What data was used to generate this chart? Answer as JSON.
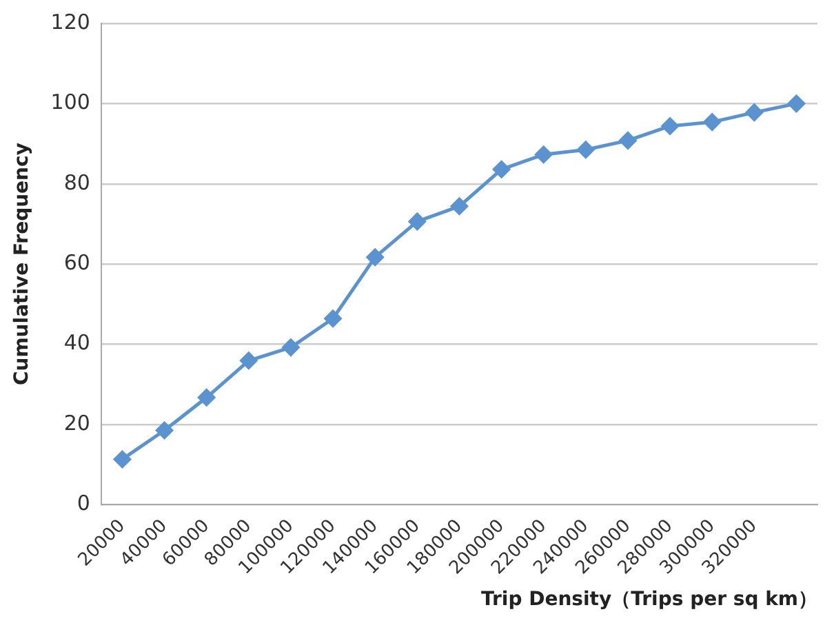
{
  "chart_data": {
    "type": "line",
    "xlabel": "Trip Density（Trips per sq km）",
    "ylabel": "Cumulative Frequency",
    "categories": [
      "20000",
      "40000",
      "60000",
      "80000",
      "100000",
      "120000",
      "140000",
      "160000",
      "180000",
      "200000",
      "220000",
      "240000",
      "260000",
      "280000",
      "300000",
      "320000",
      null
    ],
    "series": [
      {
        "color": "#5b93d0",
        "values": [
          11.3,
          18.5,
          26.7,
          35.9,
          39.2,
          46.4,
          61.7,
          70.6,
          74.4,
          83.6,
          87.3,
          88.5,
          90.8,
          94.4,
          95.4,
          97.8,
          100
        ]
      }
    ],
    "ylim": [
      0,
      120
    ],
    "yticks": [
      0,
      20,
      40,
      60,
      80,
      100,
      120
    ],
    "grid": "y",
    "legend": false,
    "marker": "diamond",
    "line_style": "solid"
  }
}
